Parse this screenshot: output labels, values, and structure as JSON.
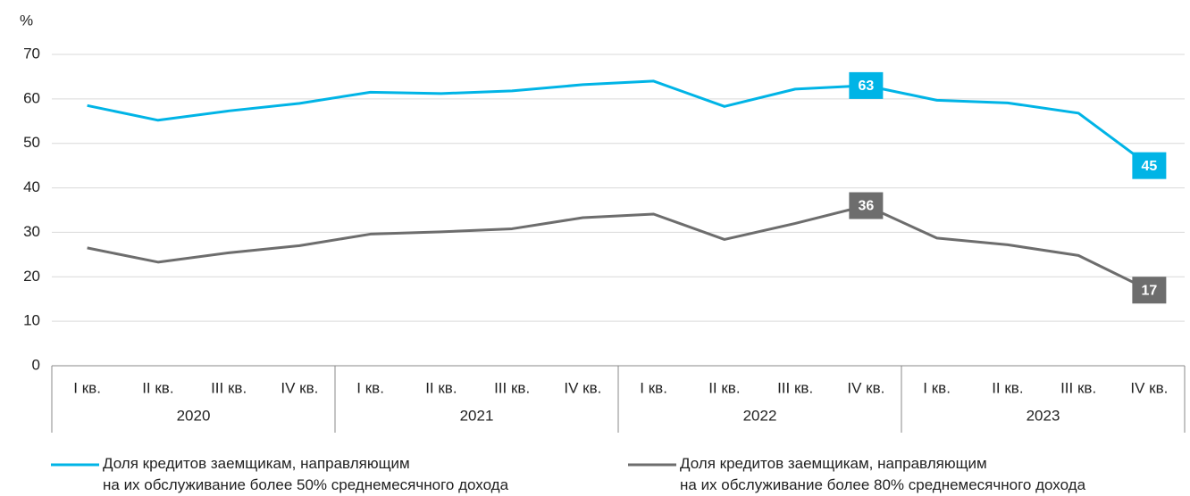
{
  "chart_data": {
    "type": "line",
    "y_label": "%",
    "categories": [
      "I кв.",
      "II кв.",
      "III кв.",
      "IV кв.",
      "I кв.",
      "II кв.",
      "III кв.",
      "IV кв.",
      "I кв.",
      "II кв.",
      "III кв.",
      "IV кв.",
      "I кв.",
      "II кв.",
      "III кв.",
      "IV кв."
    ],
    "groups": [
      "2020",
      "2021",
      "2022",
      "2023"
    ],
    "series": [
      {
        "name": "Доля кредитов заемщикам, направляющим\nна их обслуживание более 50% среднемесячного дохода",
        "color": "#00b4e6",
        "values": [
          58.5,
          55.2,
          57.3,
          59,
          61.5,
          61.2,
          61.8,
          63.2,
          64,
          58.3,
          62.2,
          63,
          59.7,
          59.1,
          56.8,
          45
        ],
        "value_labels": [
          null,
          null,
          null,
          null,
          null,
          null,
          null,
          null,
          null,
          null,
          null,
          "63",
          null,
          null,
          null,
          "45"
        ]
      },
      {
        "name": "Доля кредитов заемщикам, направляющим\nна их обслуживание более 80% среднемесячного дохода",
        "color": "#6d6d6d",
        "values": [
          26.5,
          23.3,
          25.4,
          27,
          29.6,
          30.1,
          30.8,
          33.3,
          34.1,
          28.4,
          32,
          36,
          28.7,
          27.2,
          24.8,
          17
        ],
        "value_labels": [
          null,
          null,
          null,
          null,
          null,
          null,
          null,
          null,
          null,
          null,
          null,
          "36",
          null,
          null,
          null,
          "17"
        ]
      }
    ],
    "ylim": [
      0,
      70
    ],
    "yticks": [
      0,
      10,
      20,
      30,
      40,
      50,
      60,
      70
    ],
    "grid": true
  }
}
